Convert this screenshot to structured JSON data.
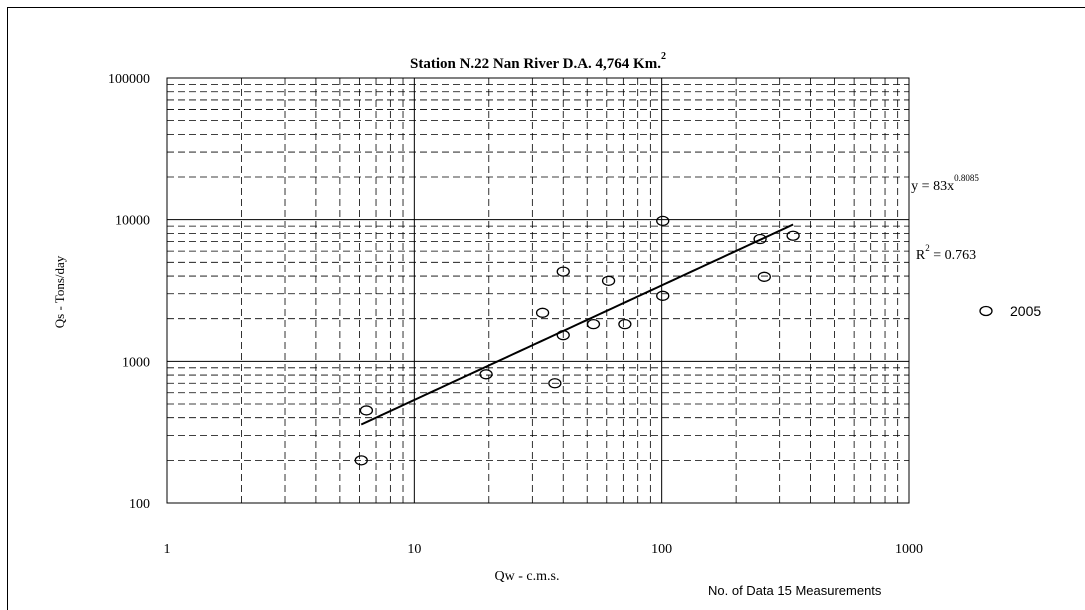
{
  "chart_data": {
    "type": "scatter",
    "title_main": "Station N.22 Nan River D.A. 4,764 Km.",
    "title_sup": "2",
    "xlabel": "Qw - c.m.s.",
    "ylabel": "Qs - Tons/day",
    "x_scale": "log",
    "y_scale": "log",
    "xlim": [
      1,
      1000
    ],
    "ylim": [
      100,
      100000
    ],
    "x_ticks": [
      "1",
      "10",
      "100",
      "1000"
    ],
    "y_ticks": [
      "100",
      "1000",
      "10000",
      "100000"
    ],
    "grid": true,
    "legend_position": "right",
    "series": [
      {
        "name": "2005",
        "points": [
          [
            6.1,
            200
          ],
          [
            6.4,
            450
          ],
          [
            19.5,
            810
          ],
          [
            33,
            2200
          ],
          [
            37,
            700
          ],
          [
            40,
            4300
          ],
          [
            40,
            1530
          ],
          [
            53,
            1830
          ],
          [
            61,
            3700
          ],
          [
            71,
            1830
          ],
          [
            101,
            9800
          ],
          [
            101,
            2900
          ],
          [
            250,
            7300
          ],
          [
            260,
            3950
          ],
          [
            340,
            7700
          ]
        ]
      }
    ],
    "trendline": {
      "coef": 83,
      "exponent": 0.8085,
      "x_range": [
        6.1,
        340
      ],
      "eq_prefix": "y = 83x",
      "eq_exponent": "0.8085",
      "r2_prefix": "R",
      "r2_sup": "2",
      "r2_suffix": " = 0.763"
    },
    "note": "No. of Data 15 Measurements"
  }
}
